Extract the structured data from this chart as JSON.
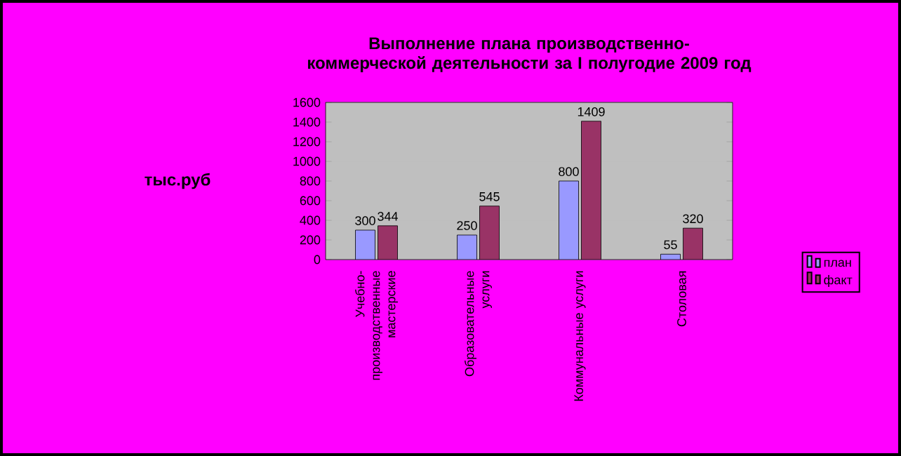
{
  "chart_data": {
    "type": "bar",
    "title": "Выполнение плана производственно-коммерческой деятельности за I полугодие 2009 год",
    "ylabel": "тыс.руб",
    "categories": [
      "Учебно-производственные мастерские",
      "Образовательные услуги",
      "Коммунальные услуги",
      "Столовая"
    ],
    "series": [
      {
        "name": "план",
        "color": "#9999ff",
        "values": [
          300,
          250,
          800,
          55
        ]
      },
      {
        "name": "факт",
        "color": "#993366",
        "values": [
          344,
          545,
          1409,
          320
        ]
      }
    ],
    "ylim": [
      0,
      1600
    ],
    "yticks": [
      0,
      200,
      400,
      600,
      800,
      1000,
      1200,
      1400,
      1600
    ],
    "grid": "y",
    "legend": "right",
    "data_labels": true
  }
}
